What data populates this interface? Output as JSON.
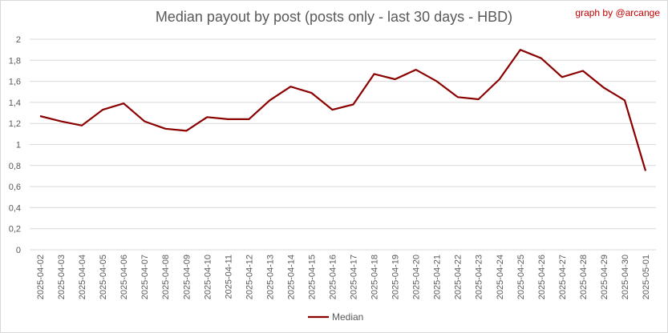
{
  "chart_data": {
    "type": "line",
    "title": "Median payout by post (posts only - last 30 days - HBD)",
    "credit": "graph by @arcange",
    "xlabel": "",
    "ylabel": "",
    "ylim": [
      0,
      2
    ],
    "yticks": [
      "0",
      "0,2",
      "0,4",
      "0,6",
      "0,8",
      "1",
      "1,2",
      "1,4",
      "1,6",
      "1,8",
      "2"
    ],
    "grid": true,
    "legend_position": "bottom",
    "categories": [
      "2025-04-02",
      "2025-04-03",
      "2025-04-04",
      "2025-04-05",
      "2025-04-06",
      "2025-04-07",
      "2025-04-08",
      "2025-04-09",
      "2025-04-10",
      "2025-04-11",
      "2025-04-12",
      "2025-04-13",
      "2025-04-14",
      "2025-04-15",
      "2025-04-16",
      "2025-04-17",
      "2025-04-18",
      "2025-04-19",
      "2025-04-20",
      "2025-04-21",
      "2025-04-22",
      "2025-04-23",
      "2025-04-24",
      "2025-04-25",
      "2025-04-26",
      "2025-04-27",
      "2025-04-28",
      "2025-04-29",
      "2025-04-30",
      "2025-05-01"
    ],
    "series": [
      {
        "name": "Median",
        "color": "#8b0000",
        "values": [
          1.27,
          1.22,
          1.18,
          1.33,
          1.39,
          1.22,
          1.15,
          1.13,
          1.26,
          1.24,
          1.24,
          1.42,
          1.55,
          1.49,
          1.33,
          1.38,
          1.67,
          1.62,
          1.71,
          1.6,
          1.45,
          1.43,
          1.62,
          1.9,
          1.82,
          1.64,
          1.7,
          1.54,
          1.42,
          0.75
        ]
      }
    ]
  }
}
